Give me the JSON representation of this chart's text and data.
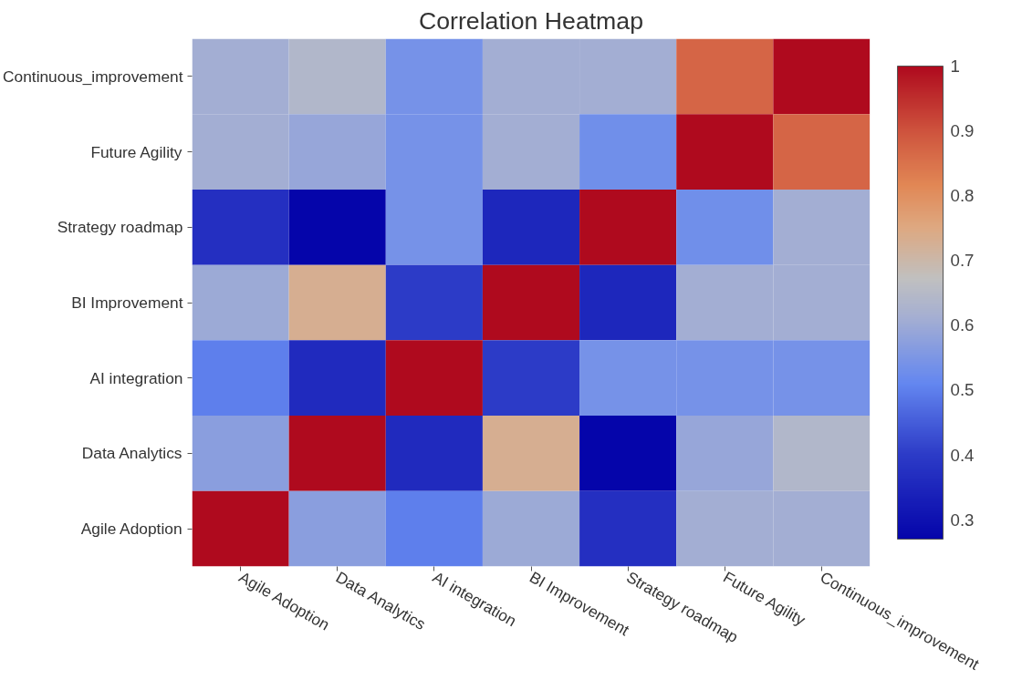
{
  "chart_data": {
    "type": "heatmap",
    "title": "Correlation Heatmap",
    "categories": [
      "Agile Adoption",
      "Data Analytics",
      "AI integration",
      "BI Improvement",
      "Strategy roadmap",
      "Future Agility",
      "Continuous_improvement"
    ],
    "y_categories": [
      "Continuous_improvement",
      "Future Agility",
      "Strategy roadmap",
      "BI Improvement",
      "AI integration",
      "Data Analytics",
      "Agile Adoption"
    ],
    "cells": [
      [
        0.61,
        0.64,
        0.54,
        0.61,
        0.61,
        0.87,
        1
      ],
      [
        0.61,
        0.59,
        0.54,
        0.61,
        0.53,
        1,
        0.87
      ],
      [
        0.37,
        0.27,
        0.54,
        0.35,
        1,
        0.53,
        0.61
      ],
      [
        0.6,
        0.73,
        0.4,
        1,
        0.35,
        0.61,
        0.61
      ],
      [
        0.5,
        0.36,
        1,
        0.4,
        0.54,
        0.54,
        0.54
      ],
      [
        0.57,
        1,
        0.36,
        0.73,
        0.27,
        0.59,
        0.64
      ],
      [
        1,
        0.57,
        0.5,
        0.6,
        0.37,
        0.61,
        0.61
      ]
    ],
    "clim": [
      0.27,
      1
    ],
    "cticks": [
      0.3,
      0.4,
      0.5,
      0.6,
      0.7,
      0.8,
      0.9,
      1
    ]
  }
}
